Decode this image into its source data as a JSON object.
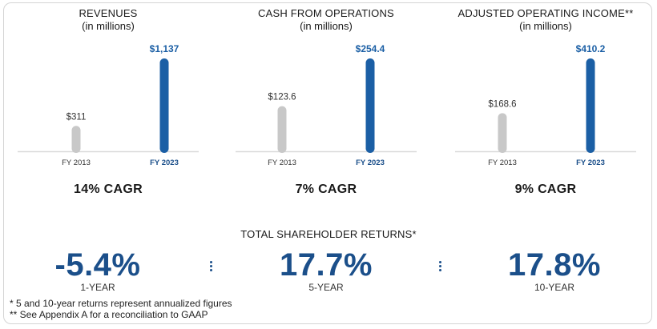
{
  "colors": {
    "accent": "#1b5fa5",
    "gray_bar": "#c8c8c8",
    "stat_blue": "#1b4f8a"
  },
  "chart_data": [
    {
      "type": "bar",
      "title": "REVENUES",
      "subtitle": "(in millions)",
      "categories": [
        "FY 2013",
        "FY 2023"
      ],
      "values": [
        311,
        1137
      ],
      "value_labels": [
        "$311",
        "$1,137"
      ],
      "highlight_index": 1,
      "ylim": [
        0,
        1137
      ],
      "cagr": "14% CAGR"
    },
    {
      "type": "bar",
      "title": "CASH FROM OPERATIONS",
      "subtitle": "(in millions)",
      "categories": [
        "FY 2013",
        "FY 2023"
      ],
      "values": [
        123.6,
        254.4
      ],
      "value_labels": [
        "$123.6",
        "$254.4"
      ],
      "highlight_index": 1,
      "ylim": [
        0,
        254.4
      ],
      "cagr": "7% CAGR"
    },
    {
      "type": "bar",
      "title": "ADJUSTED OPERATING INCOME**",
      "subtitle": "(in millions)",
      "categories": [
        "FY 2013",
        "FY 2023"
      ],
      "values": [
        168.6,
        410.2
      ],
      "value_labels": [
        "$168.6",
        "$410.2"
      ],
      "highlight_index": 1,
      "ylim": [
        0,
        410.2
      ],
      "cagr": "9% CAGR"
    }
  ],
  "shareholder_returns": {
    "title": "TOTAL SHAREHOLDER RETURNS*",
    "items": [
      {
        "value": "-5.4%",
        "label": "1-YEAR"
      },
      {
        "value": "17.7%",
        "label": "5-YEAR"
      },
      {
        "value": "17.8%",
        "label": "10-YEAR"
      }
    ]
  },
  "footnotes": [
    "*   5 and 10-year returns represent annualized figures",
    "** See Appendix A for a reconciliation to GAAP"
  ]
}
